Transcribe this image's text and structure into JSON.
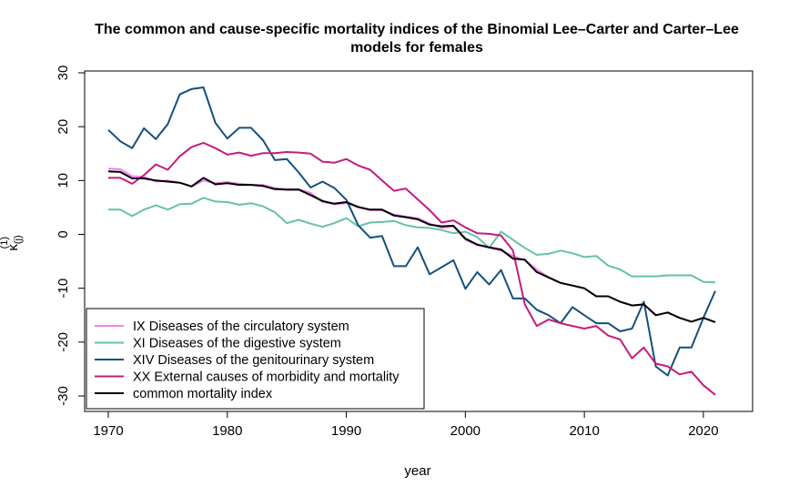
{
  "chart_data": {
    "type": "line",
    "title_line1": "The common and cause-specific mortality indices of the Binomial Lee–Carter and Carter–Lee",
    "title_line2": "models for females",
    "xlabel": "year",
    "ylabel": "κ(j)(1)",
    "xlim": [
      1970,
      2021
    ],
    "ylim": [
      -30,
      30
    ],
    "x_ticks": [
      "1970",
      "1980",
      "1990",
      "2000",
      "2010",
      "2020"
    ],
    "y_ticks": [
      "-30",
      "-20",
      "-10",
      "0",
      "10",
      "20",
      "30"
    ],
    "grid": false,
    "legend_position": "bottom-left",
    "x": [
      1970,
      1971,
      1972,
      1973,
      1974,
      1975,
      1976,
      1977,
      1978,
      1979,
      1980,
      1981,
      1982,
      1983,
      1984,
      1985,
      1986,
      1987,
      1988,
      1989,
      1990,
      1991,
      1992,
      1993,
      1994,
      1995,
      1996,
      1997,
      1998,
      1999,
      2000,
      2001,
      2002,
      2003,
      2004,
      2005,
      2006,
      2007,
      2008,
      2009,
      2010,
      2011,
      2012,
      2013,
      2014,
      2015,
      2016,
      2017,
      2018,
      2019,
      2020,
      2021
    ],
    "series": [
      {
        "name": "IX Diseases of the circulatory system",
        "color": "#EE82EE",
        "values": [
          12.2,
          12.1,
          10.8,
          10.7,
          9.8,
          10.0,
          9.6,
          8.9,
          10.0,
          9.5,
          9.7,
          9.4,
          9.2,
          9.2,
          8.6,
          8.4,
          8.4,
          7.7,
          6.0,
          5.6,
          5.8,
          5.0,
          4.5,
          4.5,
          3.7,
          3.3,
          3.0,
          2.0,
          1.2,
          1.5,
          -1.0,
          -2.0,
          -2.5,
          -3.0,
          -4.0,
          -4.8,
          -6.5,
          -8.0,
          -9.0,
          -9.5,
          -10.0,
          -11.5,
          -11.5,
          -12.5,
          -13.2,
          -13.0,
          -15.0,
          -14.5,
          -15.5,
          -16.2,
          -15.5,
          -16.3
        ]
      },
      {
        "name": "XI Diseases of the digestive system",
        "color": "#66C2A5",
        "values": [
          4.6,
          4.6,
          3.4,
          4.6,
          5.4,
          4.6,
          5.6,
          5.7,
          6.8,
          6.1,
          6.0,
          5.5,
          5.8,
          5.2,
          4.1,
          2.1,
          2.7,
          2.0,
          1.4,
          2.1,
          3.0,
          1.5,
          2.2,
          2.3,
          2.5,
          1.7,
          1.3,
          1.2,
          0.8,
          0.2,
          0.5,
          -0.5,
          -2.5,
          0.5,
          -1.0,
          -2.5,
          -3.8,
          -3.6,
          -3.0,
          -3.5,
          -4.2,
          -4.0,
          -5.8,
          -6.5,
          -7.8,
          -7.8,
          -7.8,
          -7.6,
          -7.6,
          -7.6,
          -8.8,
          -8.9
        ]
      },
      {
        "name": "XIV Diseases of the genitourinary system",
        "color": "#14507C",
        "values": [
          19.4,
          17.3,
          16.0,
          19.7,
          17.7,
          20.5,
          26.0,
          27.0,
          27.3,
          20.7,
          17.8,
          19.8,
          19.8,
          17.5,
          13.8,
          14.0,
          11.5,
          8.7,
          9.8,
          8.6,
          6.4,
          1.7,
          -0.6,
          -0.3,
          -5.9,
          -5.9,
          -2.4,
          -7.4,
          -6.1,
          -4.8,
          -10.1,
          -7.0,
          -9.3,
          -6.6,
          -11.9,
          -11.9,
          -14.0,
          -15.0,
          -16.5,
          -13.5,
          -15.0,
          -16.5,
          -16.5,
          -18.0,
          -17.5,
          -12.5,
          -24.5,
          -26.2,
          -21.0,
          -21.0,
          -15.5,
          -10.5
        ]
      },
      {
        "name": "XX External causes of morbidity and mortality",
        "color": "#C51B7D",
        "values": [
          10.5,
          10.5,
          9.4,
          11.0,
          13.0,
          12.0,
          14.5,
          16.2,
          17.0,
          16.0,
          14.8,
          15.2,
          14.6,
          15.1,
          15.1,
          15.3,
          15.2,
          15.0,
          13.5,
          13.3,
          14.0,
          12.8,
          12.0,
          10.0,
          8.1,
          8.5,
          6.5,
          4.5,
          2.2,
          2.6,
          1.3,
          0.2,
          0.1,
          -0.2,
          -3.0,
          -13.0,
          -17.0,
          -15.8,
          -16.5,
          -17.0,
          -17.5,
          -17.0,
          -18.8,
          -19.5,
          -23.0,
          -21.0,
          -24.0,
          -24.5,
          -26.0,
          -25.5,
          -28.0,
          -29.8
        ]
      },
      {
        "name": "common mortality index",
        "color": "#000000",
        "values": [
          11.7,
          11.6,
          10.4,
          10.4,
          10.0,
          9.8,
          9.6,
          8.9,
          10.5,
          9.3,
          9.5,
          9.2,
          9.2,
          9.0,
          8.4,
          8.3,
          8.3,
          7.3,
          6.2,
          5.7,
          6.0,
          5.1,
          4.6,
          4.6,
          3.5,
          3.2,
          2.8,
          1.8,
          1.5,
          1.6,
          -0.8,
          -1.9,
          -2.4,
          -2.8,
          -4.5,
          -4.7,
          -7.0,
          -8.0,
          -9.0,
          -9.5,
          -10.0,
          -11.5,
          -11.5,
          -12.5,
          -13.2,
          -13.0,
          -15.0,
          -14.5,
          -15.5,
          -16.2,
          -15.5,
          -16.3
        ]
      }
    ]
  }
}
